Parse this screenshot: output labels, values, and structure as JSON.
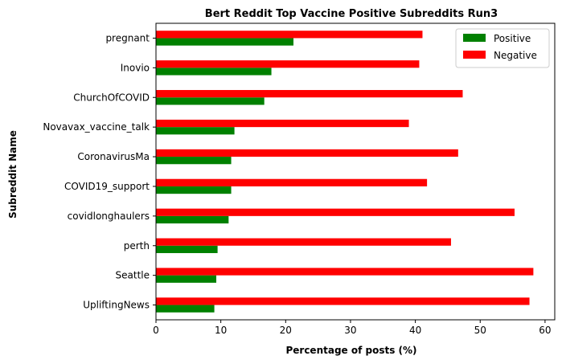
{
  "chart_data": {
    "type": "bar",
    "orientation": "horizontal",
    "title": "Bert Reddit Top Vaccine Positive Subreddits Run3",
    "xlabel": "Percentage of posts (%)",
    "ylabel": "Subreddit Name",
    "xlim": [
      0,
      61.5
    ],
    "xticks": [
      0,
      10,
      20,
      30,
      40,
      50,
      60
    ],
    "grid": false,
    "legend_position": "top-right",
    "categories": [
      "UpliftingNews",
      "Seattle",
      "perth",
      "covidlonghaulers",
      "COVID19_support",
      "CoronavirusMa",
      "Novavax_vaccine_talk",
      "ChurchOfCOVID",
      "Inovio",
      "pregnant"
    ],
    "series": [
      {
        "name": "Positive",
        "color": "#008000",
        "values": [
          9.0,
          9.3,
          9.5,
          11.2,
          11.6,
          11.6,
          12.1,
          16.7,
          17.8,
          21.2
        ]
      },
      {
        "name": "Negative",
        "color": "#ff0000",
        "values": [
          57.6,
          58.2,
          45.5,
          55.3,
          41.8,
          46.6,
          39.0,
          47.3,
          40.6,
          41.1
        ]
      }
    ]
  }
}
